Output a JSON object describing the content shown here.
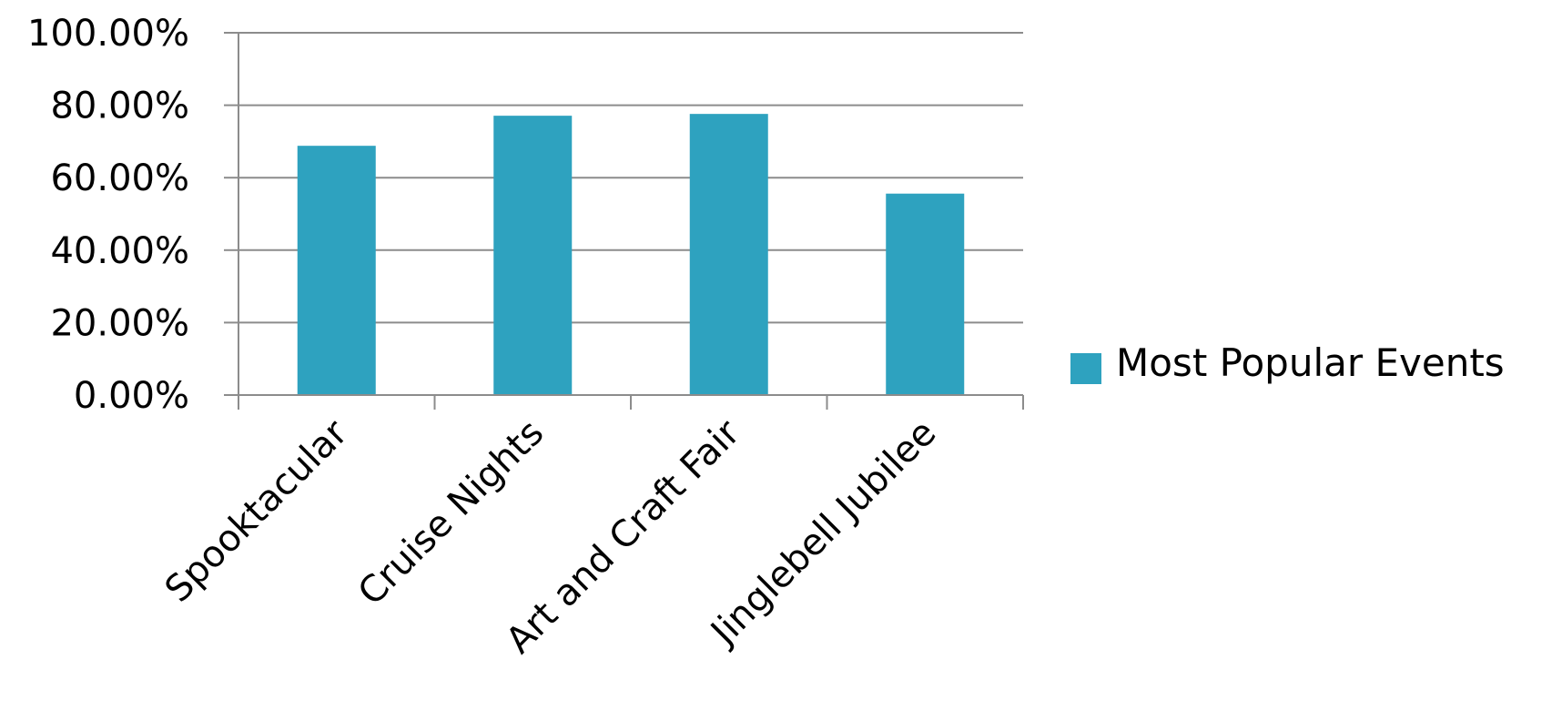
{
  "chart_data": {
    "type": "bar",
    "categories": [
      "Spooktacular",
      "Cruise Nights",
      "Art and Craft Fair",
      "Jinglebell Jubilee"
    ],
    "series": [
      {
        "name": "Most Popular Events",
        "values": [
          68.8,
          77.1,
          77.6,
          55.6
        ]
      }
    ],
    "ylim": [
      0,
      100
    ],
    "yticks": [
      0,
      20,
      40,
      60,
      80,
      100
    ],
    "ytick_labels": [
      "0.00%",
      "20.00%",
      "40.00%",
      "60.00%",
      "80.00%",
      "100.00%"
    ],
    "grid": true,
    "legend": "right",
    "bar_color": "#2ea2bf",
    "title": "",
    "xlabel": "",
    "ylabel": ""
  }
}
